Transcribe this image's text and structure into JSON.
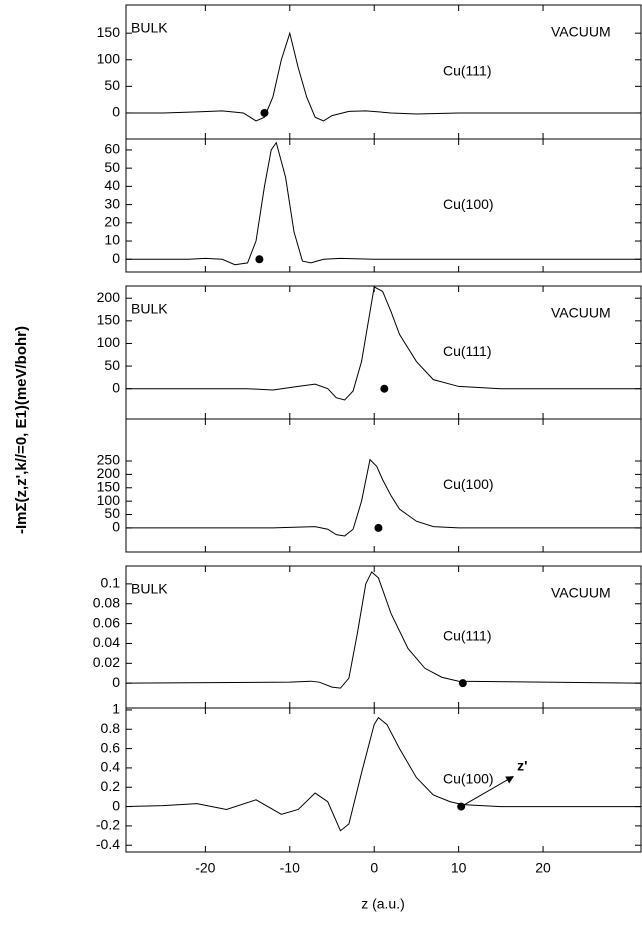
{
  "shared_x": {
    "xlabel": "z (a.u.)",
    "xlim": [
      -29.4,
      31.6
    ],
    "xticks": [
      -20,
      -10,
      0,
      10,
      20
    ]
  },
  "ylabel": "-ImΣ(z,z',k//=0, E1)(meV/bohr)",
  "chart_data": [
    {
      "type": "line",
      "left_label": "BULK",
      "right_label": "VACUUM",
      "label": "Cu(111)",
      "ylim": [
        -49,
        203
      ],
      "yticks": [
        0,
        50,
        100,
        150
      ],
      "x": [
        -29.4,
        -25,
        -21,
        -18,
        -15.5,
        -14,
        -13,
        -12,
        -11,
        -10,
        -9,
        -8,
        -7,
        -6,
        -5,
        -3,
        -1,
        2,
        5,
        10,
        20,
        31.6
      ],
      "values": [
        0,
        0,
        2,
        4,
        0,
        -15,
        -8,
        30,
        100,
        150,
        85,
        30,
        -8,
        -15,
        -5,
        3,
        4,
        0,
        -2,
        0,
        0,
        0
      ],
      "point": {
        "x": -13,
        "y": 0
      }
    },
    {
      "type": "line",
      "label": "Cu(100)",
      "ylim": [
        -7,
        66
      ],
      "yticks": [
        0,
        10,
        20,
        30,
        40,
        50,
        60
      ],
      "x": [
        -29.4,
        -22,
        -20,
        -18,
        -16.5,
        -15,
        -14,
        -13,
        -12.2,
        -11.6,
        -10.5,
        -9.5,
        -8.5,
        -7.5,
        -6,
        -4,
        0,
        31.6
      ],
      "values": [
        0,
        0,
        0.5,
        0,
        -3,
        -2,
        10,
        40,
        60,
        64,
        45,
        15,
        -1,
        -2,
        0,
        0.5,
        0,
        0
      ],
      "point": {
        "x": -13.6,
        "y": 0
      }
    },
    {
      "type": "line",
      "left_label": "BULK",
      "right_label": "VACUUM",
      "label": "Cu(111)",
      "ylim": [
        -67,
        227
      ],
      "yticks": [
        0,
        50,
        100,
        150,
        200
      ],
      "x": [
        -29.4,
        -15,
        -12,
        -9,
        -7,
        -5.5,
        -4.5,
        -3.5,
        -2.5,
        -1.5,
        -0.5,
        0,
        1,
        2,
        3,
        5,
        7,
        10,
        15,
        31.6
      ],
      "values": [
        0,
        0,
        -3,
        5,
        10,
        0,
        -20,
        -25,
        -5,
        60,
        170,
        225,
        215,
        170,
        120,
        60,
        20,
        5,
        0,
        0
      ],
      "point": {
        "x": 1.2,
        "y": 0
      }
    },
    {
      "type": "line",
      "label": "Cu(100)",
      "ylim": [
        -90,
        407
      ],
      "yticks": [
        0,
        50,
        100,
        150,
        200,
        250
      ],
      "x": [
        -29.4,
        -12,
        -9,
        -7,
        -5.5,
        -4.5,
        -3.5,
        -2.5,
        -1.5,
        -0.5,
        0.3,
        1,
        2,
        3,
        5,
        7,
        10,
        31.6
      ],
      "values": [
        0,
        0,
        3,
        5,
        -5,
        -25,
        -30,
        -5,
        100,
        255,
        230,
        180,
        120,
        70,
        25,
        5,
        0,
        0
      ],
      "point": {
        "x": 0.5,
        "y": 0
      }
    },
    {
      "type": "line",
      "left_label": "BULK",
      "right_label": "VACUUM",
      "label": "Cu(111)",
      "ylim": [
        -0.025,
        0.118
      ],
      "yticks": [
        0,
        0.02,
        0.04,
        0.06,
        0.08,
        0.1
      ],
      "x": [
        -29.4,
        -10,
        -7.5,
        -6.5,
        -5,
        -4,
        -3,
        -2,
        -1,
        -0.3,
        0.5,
        2,
        4,
        6,
        8,
        10,
        31.6
      ],
      "values": [
        0,
        0.001,
        0.002,
        0.001,
        -0.004,
        -0.005,
        0.005,
        0.05,
        0.1,
        0.112,
        0.106,
        0.07,
        0.035,
        0.015,
        0.006,
        0.002,
        0
      ],
      "point": {
        "x": 10.5,
        "y": 0
      }
    },
    {
      "type": "line",
      "label": "Cu(100)",
      "arrow_label": "z'",
      "ylim": [
        -0.47,
        1.02
      ],
      "yticks": [
        -0.4,
        -0.2,
        0,
        0.2,
        0.4,
        0.6,
        0.8,
        1
      ],
      "x": [
        -29.4,
        -25,
        -21,
        -17.5,
        -14,
        -11,
        -9,
        -7,
        -5.5,
        -4,
        -3,
        -1.5,
        0,
        0.5,
        1.5,
        3,
        5,
        7,
        9,
        10.5,
        15,
        31.6
      ],
      "values": [
        0,
        0.01,
        0.03,
        -0.03,
        0.07,
        -0.08,
        -0.03,
        0.14,
        0.05,
        -0.25,
        -0.18,
        0.35,
        0.85,
        0.92,
        0.85,
        0.6,
        0.3,
        0.12,
        0.05,
        0.02,
        0,
        0
      ],
      "point": {
        "x": 10.3,
        "y": 0
      }
    }
  ]
}
